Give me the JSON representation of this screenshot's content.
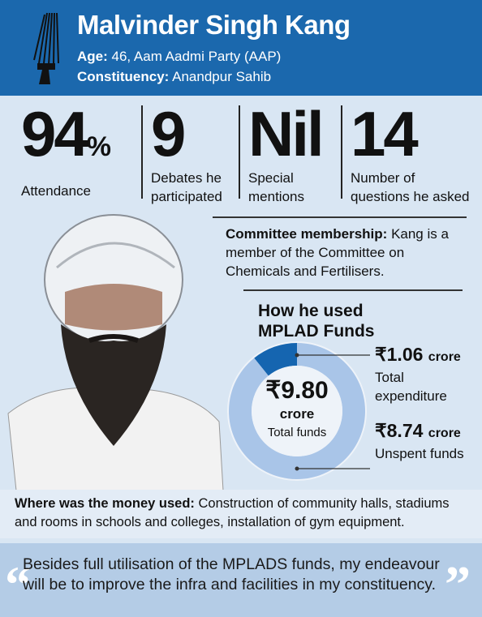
{
  "header": {
    "name": "Malvinder Singh Kang",
    "age_label": "Age:",
    "age": "46, Aam Aadmi Party (AAP)",
    "constituency_label": "Constituency:",
    "constituency": "Anandpur Sahib"
  },
  "stats": [
    {
      "value": "94",
      "unit": "%",
      "label": "Attendance"
    },
    {
      "value": "9",
      "label": "Debates he participated"
    },
    {
      "value": "Nil",
      "label": "Special mentions"
    },
    {
      "value": "14",
      "label": "Number of questions he asked"
    }
  ],
  "committee": {
    "label": "Committee membership:",
    "text": "Kang is a member of the Committee on Chemicals and Fertilisers."
  },
  "chart_data": {
    "type": "donut",
    "title": "How he used MPLAD Funds",
    "total": 9.8,
    "total_label": "₹9.80",
    "unit": "crore",
    "total_caption": "Total funds",
    "categories": [
      "Total expenditure",
      "Unspent funds"
    ],
    "values": [
      1.06,
      8.74
    ],
    "value_labels": [
      "₹1.06",
      "₹8.74"
    ],
    "colors": [
      "#1565b0",
      "#a9c5e8"
    ]
  },
  "where": {
    "label": "Where was the money used:",
    "text": "Construction of community halls, stadiums and rooms in schools and colleges, installation of gym equipment."
  },
  "quote": "Besides full utilisation of the MPLADS funds, my endeavour will be to improve the infra and facilities in my constituency."
}
